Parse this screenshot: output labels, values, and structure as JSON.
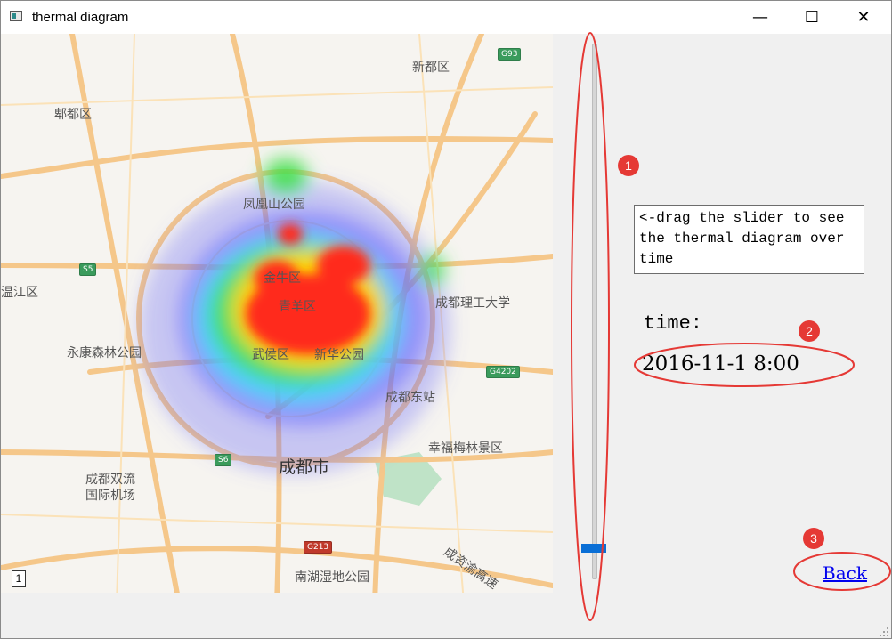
{
  "window": {
    "title": "thermal diagram",
    "controls": {
      "minimize": "—",
      "maximize": "☐",
      "close": "✕"
    }
  },
  "map": {
    "labels": [
      {
        "id": "xindu",
        "text": "新都区"
      },
      {
        "id": "pixian",
        "text": "郫都区"
      },
      {
        "id": "fenghuangshan",
        "text": "凤凰山公园"
      },
      {
        "id": "wenjiang",
        "text": "温江区"
      },
      {
        "id": "jinniu",
        "text": "金牛区"
      },
      {
        "id": "qingyang",
        "text": "青羊区"
      },
      {
        "id": "chengligong",
        "text": "成都理工大学"
      },
      {
        "id": "yongkang",
        "text": "永康森林公园"
      },
      {
        "id": "wuhou",
        "text": "武侯区"
      },
      {
        "id": "jinjiang",
        "text": "新华公园"
      },
      {
        "id": "chengdudong",
        "text": "成都东站"
      },
      {
        "id": "xingfumeilin",
        "text": "幸福梅林景区"
      },
      {
        "id": "chengdushi",
        "text": "成都市"
      },
      {
        "id": "shuangliu1",
        "text": "成都双流"
      },
      {
        "id": "shuangliu2",
        "text": "国际机场"
      },
      {
        "id": "nanhu",
        "text": "南湖湿地公园"
      },
      {
        "id": "chengyu",
        "text": "成资渝高速"
      }
    ],
    "shields": [
      "G93",
      "S5",
      "G4202",
      "S6",
      "G213"
    ],
    "scale_label": "1"
  },
  "heat": {
    "intensity": "high",
    "colors": {
      "hot": "#ff2a1a",
      "warm": "#ffd400",
      "mid": "#43e04a",
      "cool": "#3de0ff",
      "cold": "#5a5aff"
    }
  },
  "slider": {
    "value_fraction": 0.03,
    "orientation": "vertical"
  },
  "info": {
    "instruction": "<-drag the slider to see the thermal diagram over time"
  },
  "time": {
    "label": "time:",
    "value": "2016-11-1 8:00"
  },
  "back": {
    "label": "Back"
  },
  "annotations": {
    "markers": [
      "1",
      "2",
      "3"
    ],
    "color": "#e53935"
  }
}
